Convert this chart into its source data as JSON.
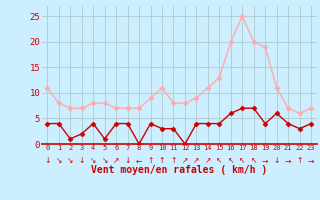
{
  "hours": [
    0,
    1,
    2,
    3,
    4,
    5,
    6,
    7,
    8,
    9,
    10,
    11,
    12,
    13,
    14,
    15,
    16,
    17,
    18,
    19,
    20,
    21,
    22,
    23
  ],
  "wind_avg": [
    4,
    4,
    1,
    2,
    4,
    1,
    4,
    4,
    0,
    4,
    3,
    3,
    0,
    4,
    4,
    4,
    6,
    7,
    7,
    4,
    6,
    4,
    3,
    4
  ],
  "wind_gust": [
    11,
    8,
    7,
    7,
    8,
    8,
    7,
    7,
    7,
    9,
    11,
    8,
    8,
    9,
    11,
    13,
    20,
    25,
    20,
    19,
    11,
    7,
    6,
    7
  ],
  "wind_dirs": [
    "↓",
    "↘",
    "↘",
    "↓",
    "↘",
    "↘",
    "↗",
    "↓",
    "←",
    "↑",
    "↑",
    "↑",
    "↗",
    "↗",
    "↗",
    "↖",
    "↖",
    "↖",
    "↖",
    "→",
    "↓",
    "→",
    "↑",
    "→"
  ],
  "bg_color": "#cceeff",
  "grid_color": "#aacccc",
  "avg_color": "#cc0000",
  "gust_color": "#ffaaaa",
  "xlabel": "Vent moyen/en rafales ( km/h )",
  "xlabel_color": "#cc0000",
  "tick_color": "#cc0000",
  "ylim": [
    0,
    27
  ],
  "yticks": [
    0,
    5,
    10,
    15,
    20,
    25
  ],
  "xlim": [
    -0.5,
    23.5
  ],
  "spine_color": "#cc0000",
  "marker": "D",
  "markersize": 2.5,
  "linewidth": 1.0
}
